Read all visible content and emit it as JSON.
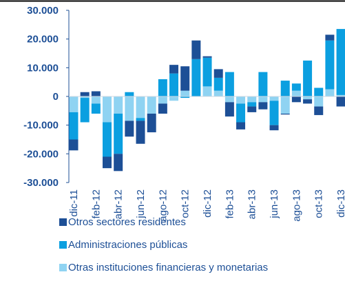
{
  "chart_data": {
    "type": "bar",
    "stacked": true,
    "categories": [
      "dic-11",
      null,
      "feb-12",
      null,
      "abr-12",
      null,
      "jun-12",
      null,
      "ago-12",
      null,
      "oct-12",
      null,
      "dic-12",
      null,
      "feb-13",
      null,
      "abr-13",
      null,
      "jun-13",
      null,
      "ago-13",
      null,
      "oct-13",
      null,
      "dic-13"
    ],
    "series": [
      {
        "name": "Otros sectores residentes",
        "color": "#1d4f96",
        "values": [
          -3800,
          1500,
          1800,
          -4000,
          -6000,
          -5500,
          -8000,
          -6500,
          -3500,
          3000,
          8500,
          6500,
          500,
          3000,
          -5000,
          -2500,
          -2000,
          -2500,
          -1800,
          -300,
          -2000,
          -1500,
          -3000,
          2000,
          -3500
        ]
      },
      {
        "name": "Administraciones públicas",
        "color": "#0b9fe0",
        "values": [
          -9500,
          -8500,
          -3500,
          -12000,
          -14000,
          1500,
          -1000,
          0,
          6000,
          8000,
          -500,
          13000,
          10000,
          4500,
          8500,
          -6500,
          -1500,
          8500,
          -8500,
          5500,
          2500,
          12500,
          3000,
          17000,
          23000
        ]
      },
      {
        "name": "Otras instituciones financieras y monetarias",
        "color": "#8fd3f2",
        "values": [
          -5500,
          -500,
          -2500,
          -9000,
          -6000,
          -8500,
          -7500,
          -6000,
          -2500,
          -1500,
          2000,
          0,
          3500,
          2000,
          -2000,
          -2500,
          -2000,
          -2000,
          -1500,
          -6000,
          2000,
          -1000,
          -3500,
          2500,
          500
        ]
      }
    ],
    "ylim": [
      -30000,
      30000
    ],
    "yticks": [
      {
        "value": -30000,
        "label": "-30.000"
      },
      {
        "value": -20000,
        "label": "-20.000"
      },
      {
        "value": -10000,
        "label": "-10.000"
      },
      0,
      {
        "value": 10000,
        "label": "10.000"
      },
      {
        "value": 20000,
        "label": "20.000"
      },
      {
        "value": 30000,
        "label": "30.000"
      }
    ],
    "legend": "bottom"
  }
}
